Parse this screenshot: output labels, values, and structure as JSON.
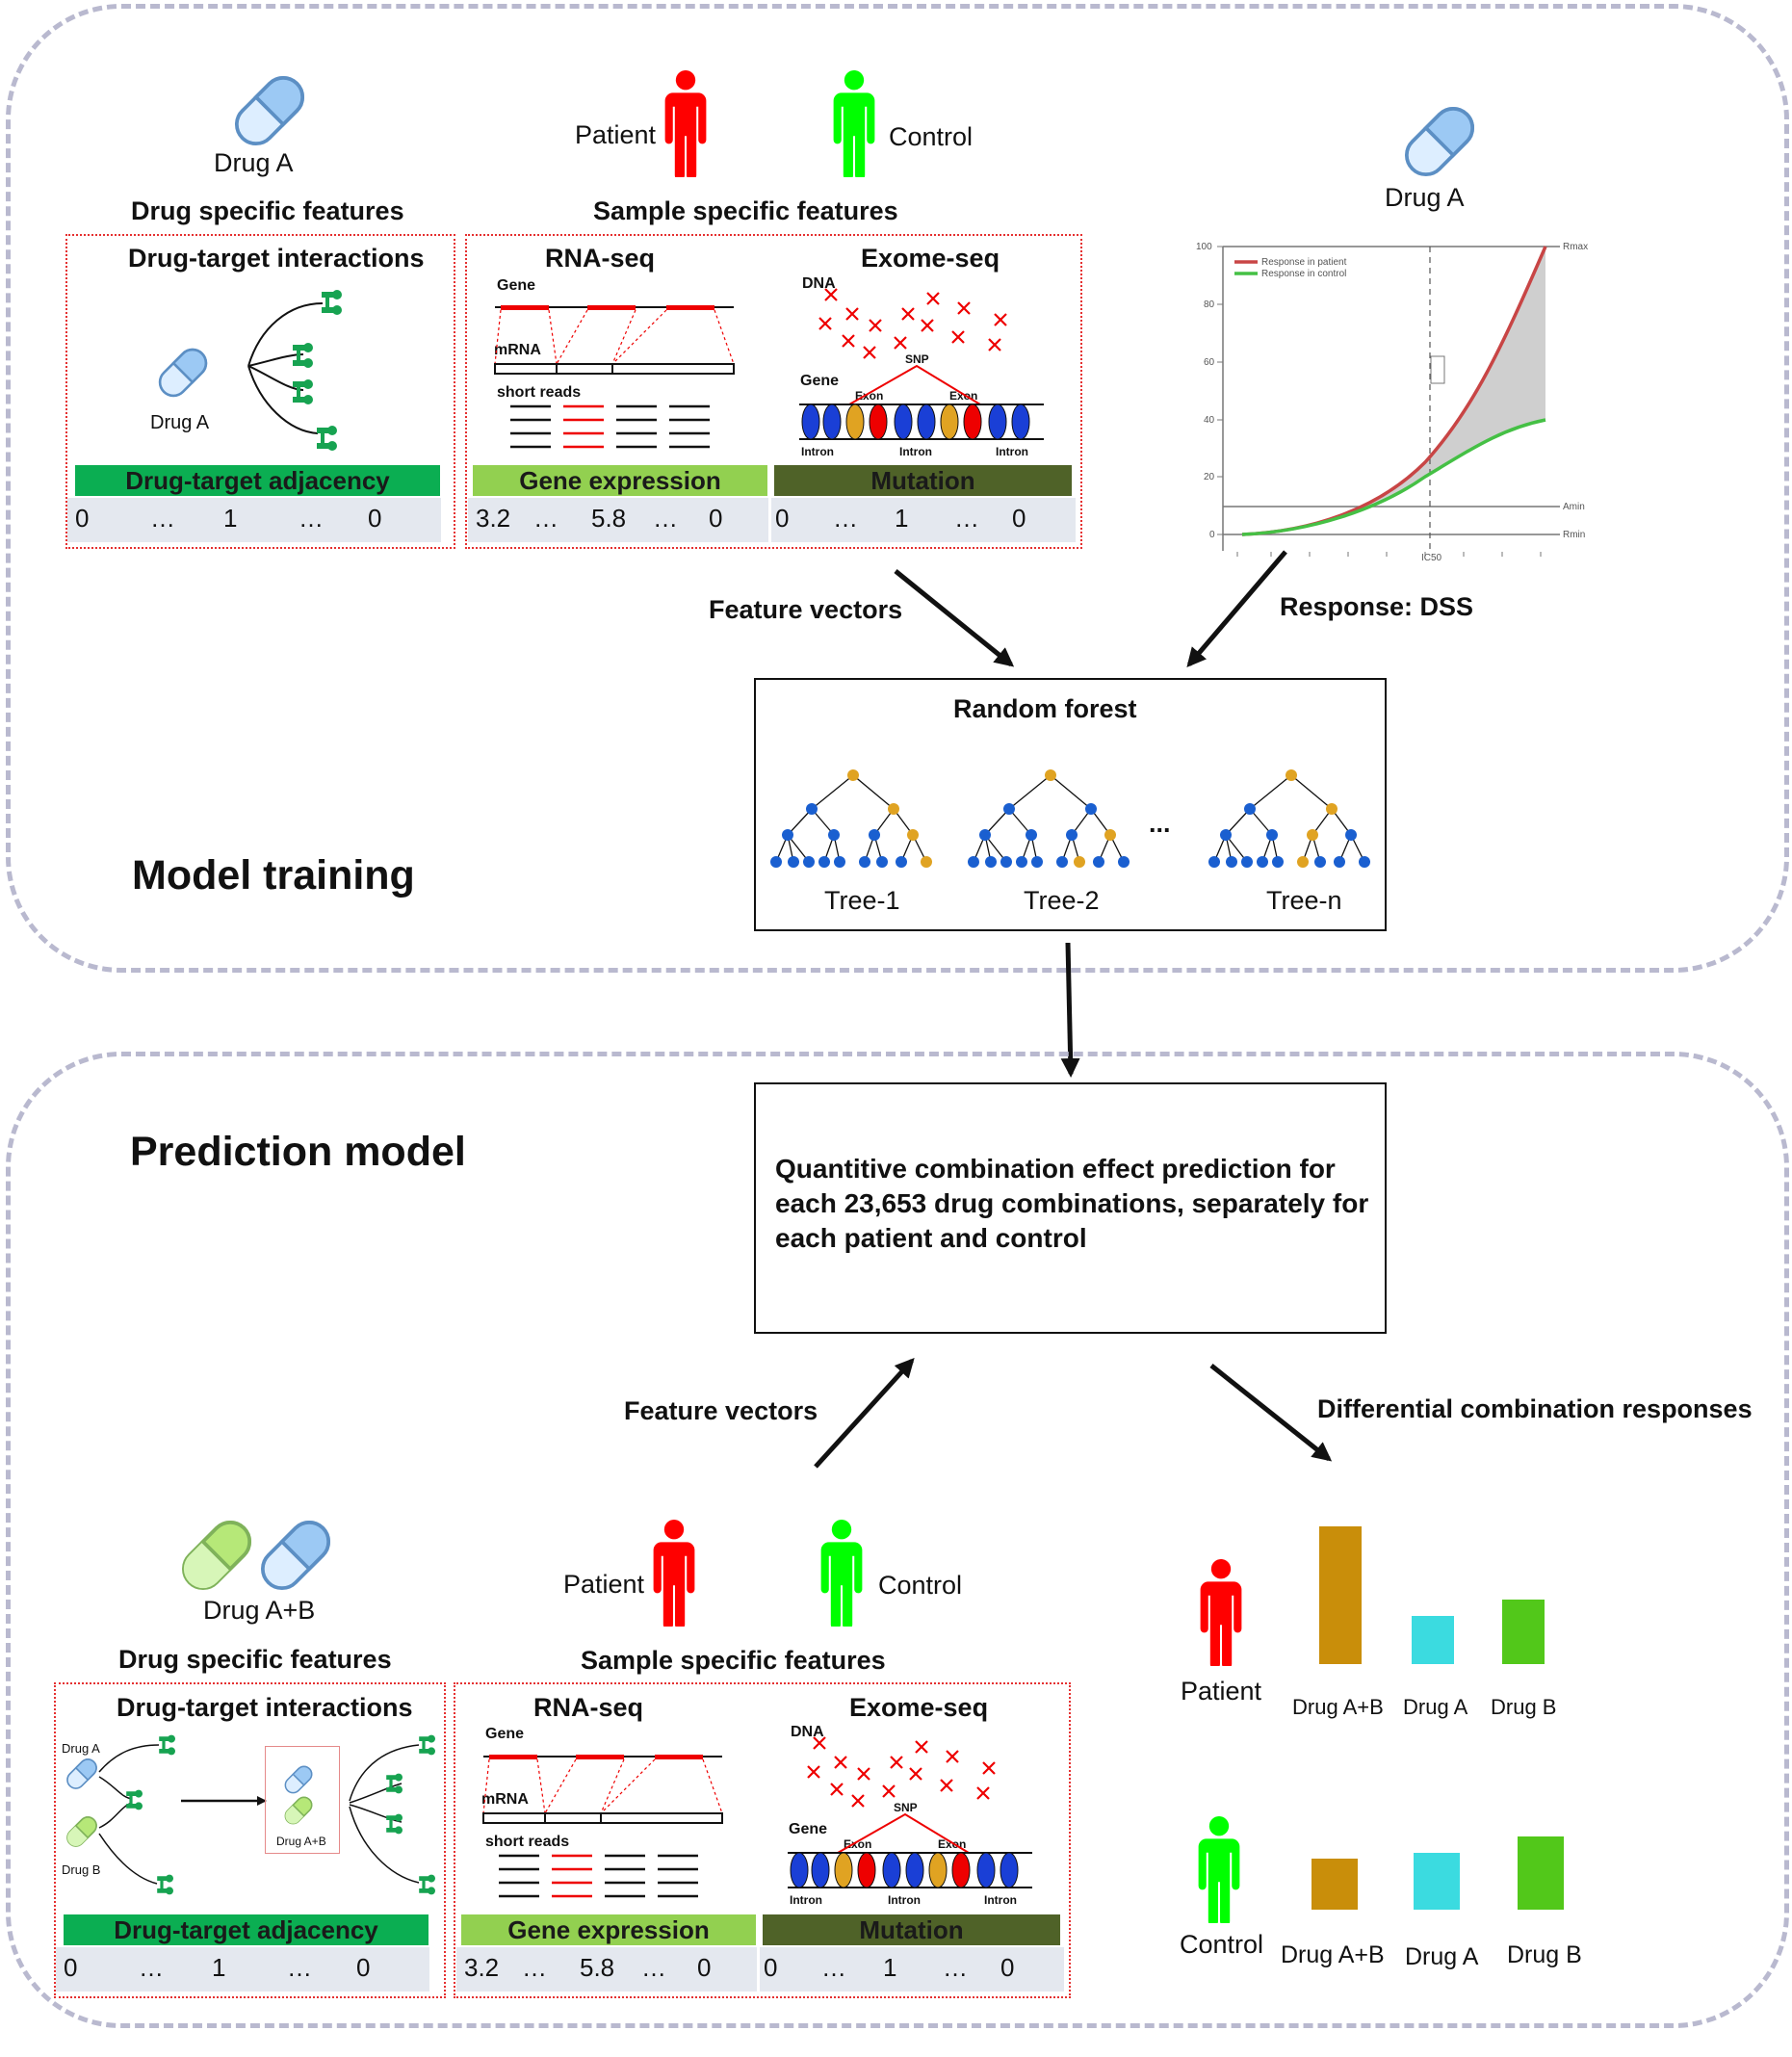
{
  "training": {
    "title": "Model training",
    "drug_label": "Drug A",
    "drug_section_title": "Drug specific features",
    "sample_section_title": "Sample specific features",
    "patient": "Patient",
    "control": "Control",
    "dti_title": "Drug-target interactions",
    "dti_drug": "Drug A",
    "adjacency_label": "Drug-target adjacency",
    "adjacency_values": [
      "0",
      "…",
      "1",
      "…",
      "0"
    ],
    "rnaseq_title": "RNA-seq",
    "rna_gene": "Gene",
    "rna_mrna": "mRNA",
    "rna_reads": "short reads",
    "expression_label": "Gene expression",
    "expression_values": [
      "3.2",
      "…",
      "5.8",
      "…",
      "0"
    ],
    "exome_title": "Exome-seq",
    "exome_dna": "DNA",
    "exome_gene": "Gene",
    "exome_snp": "SNP",
    "exome_exon": "Exon",
    "exome_intron": "Intron",
    "mutation_label": "Mutation",
    "mutation_values": [
      "0",
      "…",
      "1",
      "…",
      "0"
    ],
    "response_drug": "Drug A",
    "feature_vectors": "Feature vectors",
    "response_label": "Response: DSS",
    "random_forest": "Random forest",
    "trees": [
      "Tree-1",
      "Tree-2",
      "Tree-n"
    ],
    "ellipsis": "..."
  },
  "curve": {
    "y_ticks": [
      "100",
      "80",
      "60",
      "40",
      "20",
      "0"
    ],
    "legend_patient": "Response in patient",
    "legend_control": "Response in control",
    "rmax": "Rmax",
    "amin": "Amin",
    "rmin": "Rmin",
    "ic50": "IC50",
    "colors": {
      "patient": "#c84545",
      "control": "#45c045",
      "area": "#cfcfcf"
    }
  },
  "prediction": {
    "title": "Prediction model",
    "result_text": "Quantitive combination effect prediction for each 23,653 drug combinations, separately for each patient and control",
    "feature_vectors": "Feature vectors",
    "diff_label": "Differential combination responses",
    "drug_label": "Drug A+B",
    "drug_section_title": "Drug specific features",
    "sample_section_title": "Sample specific features",
    "patient": "Patient",
    "control": "Control",
    "dti_title": "Drug-target interactions",
    "dti_drug_a": "Drug A",
    "dti_drug_b": "Drug B",
    "dti_drug_ab": "Drug A+B",
    "adjacency_label": "Drug-target adjacency",
    "adjacency_values": [
      "0",
      "…",
      "1",
      "…",
      "0"
    ],
    "rnaseq_title": "RNA-seq",
    "rna_gene": "Gene",
    "rna_mrna": "mRNA",
    "rna_reads": "short reads",
    "expression_label": "Gene expression",
    "expression_values": [
      "3.2",
      "…",
      "5.8",
      "…",
      "0"
    ],
    "exome_title": "Exome-seq",
    "exome_dna": "DNA",
    "exome_gene": "Gene",
    "exome_snp": "SNP",
    "exome_exon": "Exon",
    "exome_intron": "Intron",
    "mutation_label": "Mutation",
    "mutation_values": [
      "0",
      "…",
      "1",
      "…",
      "0"
    ]
  },
  "responses": {
    "colors": {
      "ab": "#c98e0a",
      "a": "#3bdbe0",
      "b": "#52c81a"
    },
    "patient": {
      "label": "Patient",
      "levels": [
        1.0,
        0.35,
        0.47
      ],
      "bar_labels": [
        "Drug A+B",
        "Drug A",
        "Drug B"
      ]
    },
    "control": {
      "label": "Control",
      "levels": [
        0.37,
        0.41,
        0.53
      ],
      "bar_labels": [
        "Drug A+B",
        "Drug A",
        "Drug B"
      ]
    }
  },
  "palette": {
    "adjacency": "#0bae52",
    "expression": "#92d050",
    "mutation": "#4f6228",
    "patient": "#ff0000",
    "control": "#00ff00",
    "pill": "#9cc9f4"
  }
}
